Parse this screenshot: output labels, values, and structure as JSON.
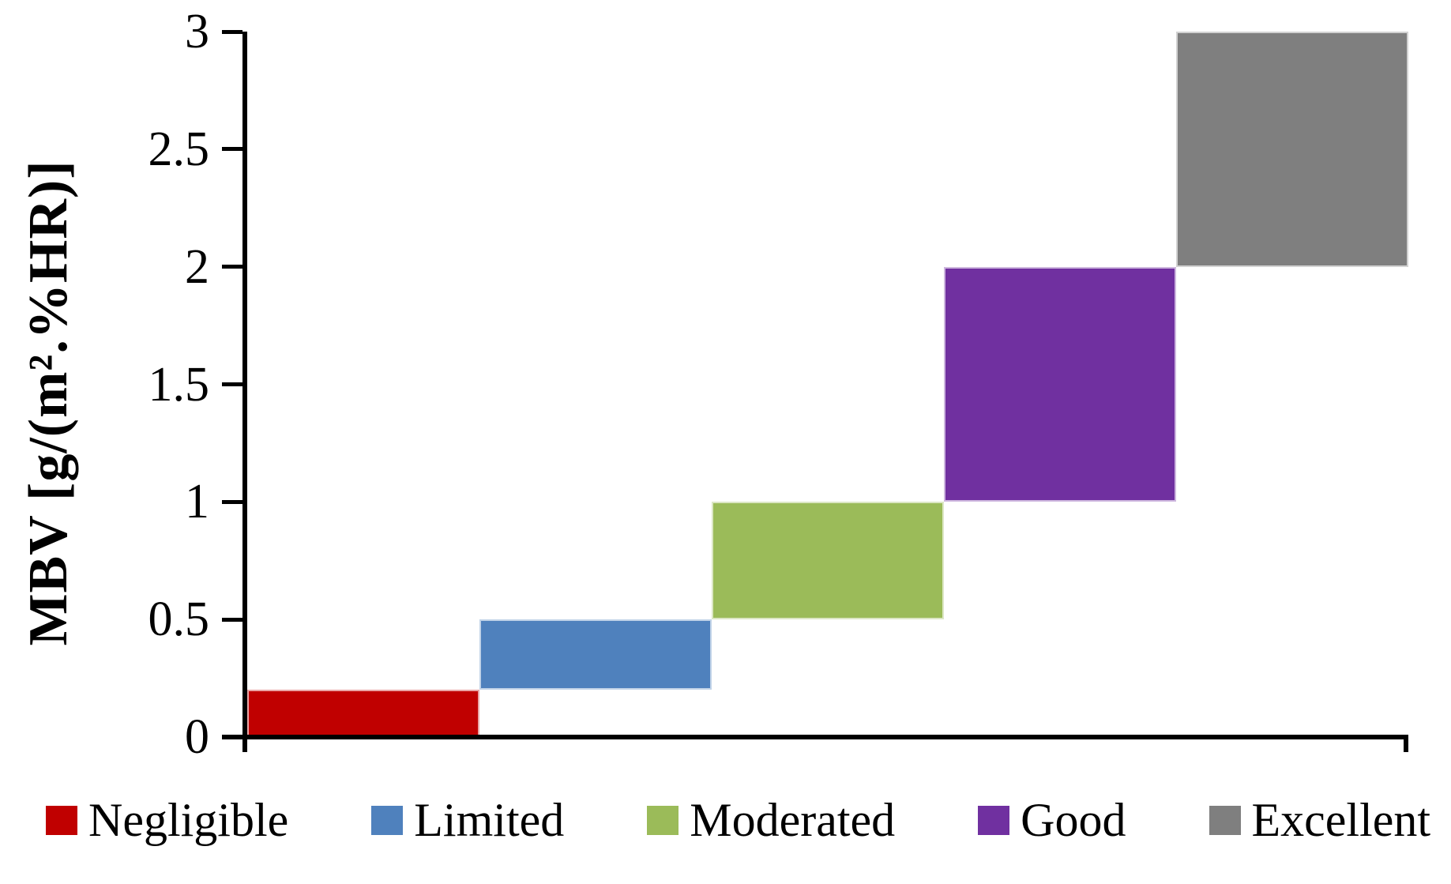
{
  "chart_data": {
    "type": "bar",
    "subtype": "stepped-range-blocks",
    "title": "",
    "xlabel": "",
    "ylabel": "MBV [g/(m².%HR)]",
    "ylim": [
      0,
      3
    ],
    "yticks": [
      0,
      0.5,
      1,
      1.5,
      2,
      2.5,
      3
    ],
    "ytick_labels": [
      "0",
      "0.5",
      "1",
      "1.5",
      "2",
      "2.5",
      "3"
    ],
    "grid": false,
    "legend_position": "bottom",
    "axis_color": "#000000",
    "background_color": "#ffffff",
    "x_slots_total": 5,
    "categories": [
      "Negligible",
      "Limited",
      "Moderated",
      "Good",
      "Excellent"
    ],
    "series": [
      {
        "name": "Negligible",
        "mbv_min": 0,
        "mbv_max": 0.2,
        "x_slot": 0,
        "color": "#c00000"
      },
      {
        "name": "Limited",
        "mbv_min": 0.2,
        "mbv_max": 0.5,
        "x_slot": 1,
        "color": "#4f81bd"
      },
      {
        "name": "Moderated",
        "mbv_min": 0.5,
        "mbv_max": 1.0,
        "x_slot": 2,
        "color": "#9bbb59"
      },
      {
        "name": "Good",
        "mbv_min": 1.0,
        "mbv_max": 2.0,
        "x_slot": 3,
        "color": "#7030a0"
      },
      {
        "name": "Excellent",
        "mbv_min": 2.0,
        "mbv_max": 3.0,
        "x_slot": 4,
        "color": "#7f7f7f"
      }
    ]
  }
}
